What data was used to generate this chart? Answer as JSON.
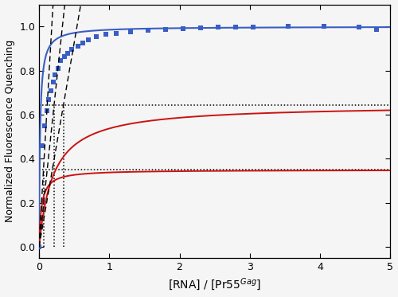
{
  "title": "",
  "xlabel": "[RNA] / [Pr55$^{Gag}$]",
  "ylabel": "Normalized Fluorescence Quenching",
  "xlim": [
    0,
    5
  ],
  "ylim": [
    -0.05,
    1.1
  ],
  "yticks": [
    0.0,
    0.2,
    0.4,
    0.6,
    0.8,
    1.0
  ],
  "xticks": [
    0,
    1,
    2,
    3,
    4,
    5
  ],
  "blue_Bmax": 1.0,
  "blue_Kd": 0.015,
  "red1_Bmax": 0.35,
  "red1_Kd": 0.035,
  "red2_Bmax": 0.645,
  "red2_Kd": 0.2,
  "hline1": 0.352,
  "hline2": 0.645,
  "blue_color": "#3a5ec4",
  "red_color": "#cc1111",
  "scatter_color": "#3a5ec4",
  "bg_color": "#f5f5f5",
  "figsize": [
    5.0,
    3.73
  ],
  "dpi": 100,
  "tangent1_slope": 5.5,
  "tangent2_slope": 3.0,
  "tangent3_slope": 1.85,
  "vline1_x": 0.064,
  "vline2_x": 0.215,
  "vline3_x": 0.348
}
